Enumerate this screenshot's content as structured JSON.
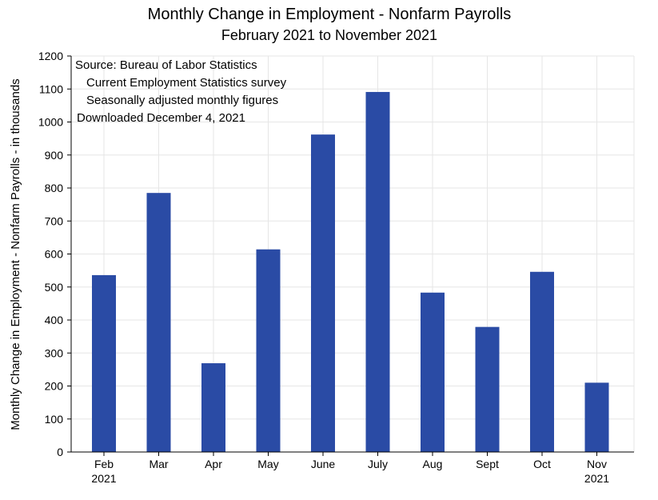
{
  "chart_data": {
    "type": "bar",
    "title": "Monthly Change in Employment - Nonfarm Payrolls",
    "subtitle": "February 2021 to November 2021",
    "ylabel": "Monthly Change in Employment - Nonfarm Payrolls - in thousands",
    "xlabel": "",
    "categories": [
      "Feb",
      "Mar",
      "Apr",
      "May",
      "June",
      "July",
      "Aug",
      "Sept",
      "Oct",
      "Nov"
    ],
    "category_sublabels": [
      "2021",
      "",
      "",
      "",
      "",
      "",
      "",
      "",
      "",
      "2021"
    ],
    "values": [
      536,
      785,
      269,
      614,
      962,
      1091,
      483,
      379,
      546,
      210
    ],
    "ylim": [
      0,
      1200
    ],
    "yticks": [
      0,
      100,
      200,
      300,
      400,
      500,
      600,
      700,
      800,
      900,
      1000,
      1100,
      1200
    ],
    "grid": true,
    "bar_color": "#2a4ba5",
    "annotation_lines": [
      "Source:  Bureau of Labor Statistics",
      "Current Employment Statistics survey",
      "Seasonally adjusted monthly figures",
      "Downloaded December 4, 2021"
    ]
  }
}
